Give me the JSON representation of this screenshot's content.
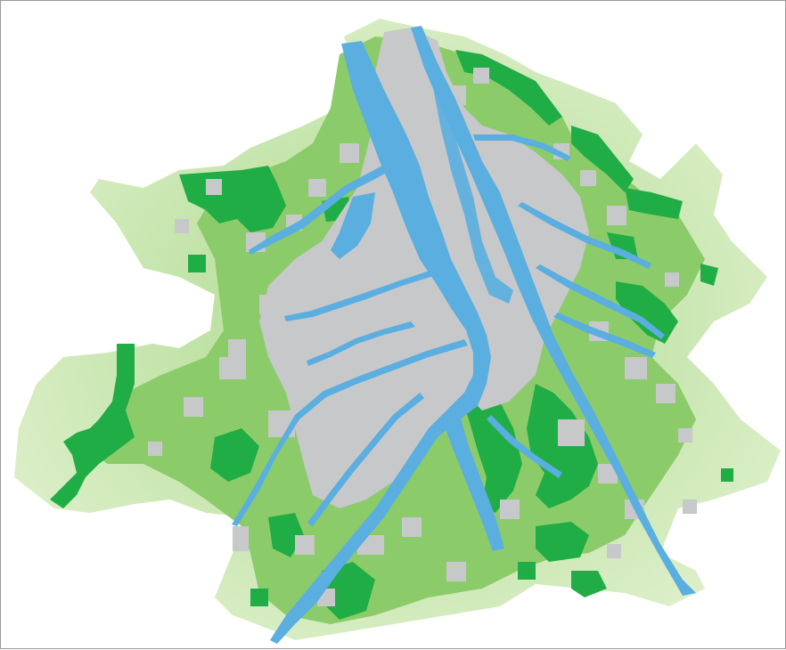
{
  "map": {
    "kind": "schematic land-use map",
    "has_text": false,
    "colors": {
      "background": "#ffffff",
      "frame": "#9a9a9a",
      "peri_urban_light": "#cfe8b4",
      "peri_urban_light_edge": "#b5dc93",
      "green_medium": "#8ccb6a",
      "green_dark": "#21ad45",
      "urban_grey": "#c7c8ca",
      "water_blue": "#5aaee0"
    },
    "layers": [
      "peri-urban-zone",
      "green-zone",
      "dense-green-patches",
      "urban-area",
      "urban-patches",
      "waterways"
    ]
  }
}
